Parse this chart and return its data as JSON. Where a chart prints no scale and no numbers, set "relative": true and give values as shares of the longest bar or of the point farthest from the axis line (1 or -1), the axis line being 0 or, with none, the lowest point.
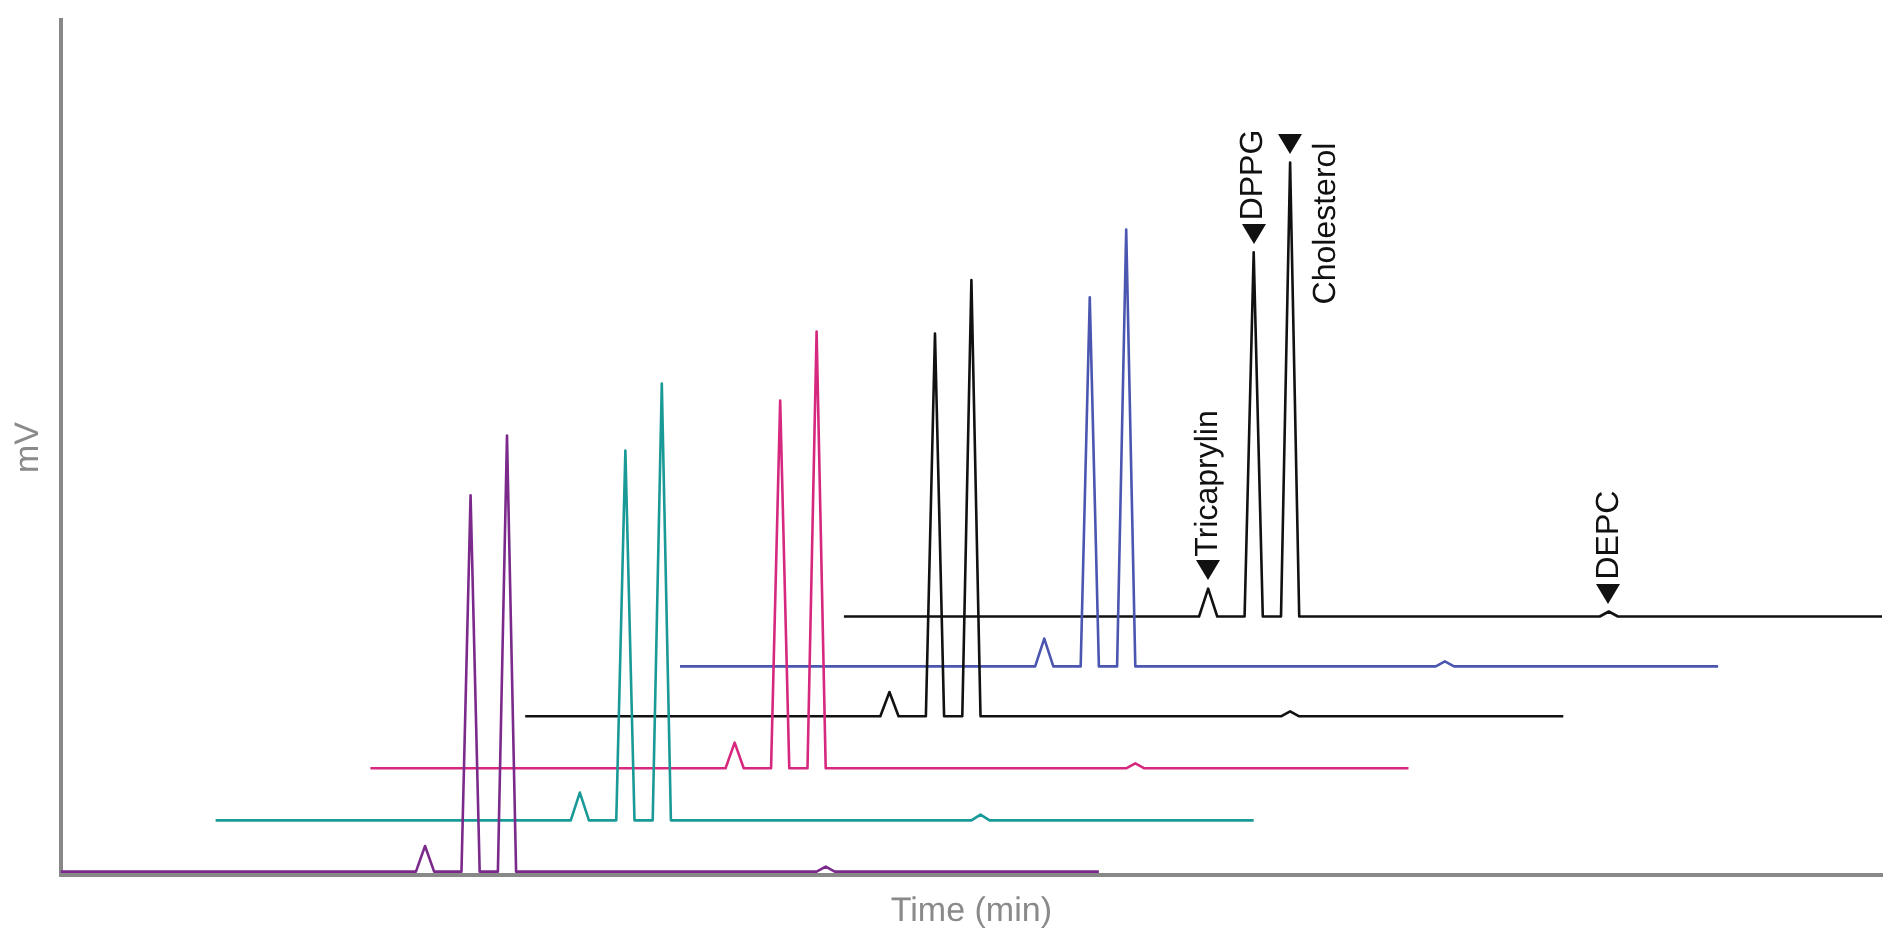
{
  "chart_data": {
    "type": "line",
    "relative": true,
    "xlabel": "Time (min)",
    "ylabel": "mV",
    "legend": false,
    "grid": false,
    "marker": "none",
    "line_style": "solid",
    "tick_labels": false,
    "categories": [
      null,
      null,
      null,
      null,
      null,
      null,
      null,
      null,
      null,
      null,
      null,
      null,
      null,
      null,
      null,
      null,
      null,
      null,
      null,
      null,
      null,
      null,
      null,
      null,
      null,
      null,
      null,
      null,
      null,
      null,
      null,
      null,
      null,
      null,
      null,
      null,
      null,
      null,
      null,
      null,
      null,
      null,
      null,
      null,
      null,
      null,
      null,
      null,
      null,
      null,
      null,
      null,
      null,
      null,
      null,
      null,
      null,
      null,
      null,
      null,
      null,
      null,
      null,
      null,
      null,
      null,
      null,
      null,
      null,
      null,
      null,
      null,
      null,
      null,
      null,
      null,
      null,
      null,
      null,
      null,
      null,
      null,
      null,
      null,
      null,
      null,
      null,
      null,
      null,
      null,
      null,
      null,
      null,
      null,
      null,
      null,
      null,
      null,
      null,
      null,
      null,
      null,
      null,
      null,
      null,
      null,
      null,
      null,
      null,
      null,
      null,
      null,
      null,
      null,
      null,
      null,
      null,
      null,
      null,
      null,
      null,
      null,
      null,
      null,
      null,
      null,
      null,
      null,
      null,
      null,
      null,
      null,
      null,
      null,
      null,
      null,
      null,
      null,
      null,
      null,
      null,
      null,
      null,
      null,
      null,
      null,
      null,
      null,
      null,
      null,
      null,
      null,
      null,
      null,
      null,
      null,
      null,
      null,
      null,
      null,
      null,
      null,
      null,
      null,
      null,
      null,
      null,
      null,
      null,
      null,
      null,
      null,
      null,
      null,
      null,
      null,
      null,
      null,
      null,
      null,
      null,
      null,
      null,
      null,
      null,
      null,
      null,
      null,
      null,
      null,
      null,
      null,
      null,
      null,
      null,
      null,
      null,
      null,
      null,
      null,
      null
    ],
    "series": [
      {
        "color": "#7b2a8c",
        "values": [
          0.005,
          0.005,
          0.005,
          0.005,
          0.005,
          0.005,
          0.005,
          0.005,
          0.005,
          0.005,
          0.005,
          0.005,
          0.005,
          0.005,
          0.005,
          0.005,
          0.005,
          0.005,
          0.005,
          0.005,
          0.005,
          0.005,
          0.005,
          0.005,
          0.005,
          0.005,
          0.005,
          0.005,
          0.005,
          0.005,
          0.005,
          0.005,
          0.005,
          0.005,
          0.005,
          0.005,
          0.005,
          0.005,
          0.005,
          0.005,
          0.041,
          0.005,
          0.005,
          0.005,
          0.005,
          0.533,
          0.005,
          0.005,
          0.005,
          0.617,
          0.005,
          0.005,
          0.005,
          0.005,
          0.005,
          0.005,
          0.005,
          0.005,
          0.005,
          0.005,
          0.005,
          0.005,
          0.005,
          0.005,
          0.005,
          0.005,
          0.005,
          0.005,
          0.005,
          0.005,
          0.005,
          0.005,
          0.005,
          0.005,
          0.005,
          0.005,
          0.005,
          0.005,
          0.005,
          0.005,
          0.005,
          0.005,
          0.005,
          0.005,
          0.012,
          0.005,
          0.005,
          0.005,
          0.005,
          0.005,
          0.005,
          0.005,
          0.005,
          0.005,
          0.005,
          0.005,
          0.005,
          0.005,
          0.005,
          0.005,
          0.005,
          0.005,
          0.005,
          0.005,
          0.005,
          0.005,
          0.005,
          0.005,
          0.005,
          0.005,
          0.005,
          0.005,
          0.005,
          0.005,
          0.005,
          null,
          null,
          null,
          null,
          null,
          null,
          null,
          null,
          null,
          null,
          null,
          null,
          null,
          null,
          null,
          null,
          null,
          null,
          null,
          null,
          null,
          null,
          null,
          null,
          null,
          null,
          null,
          null,
          null,
          null,
          null,
          null,
          null,
          null,
          null,
          null,
          null,
          null,
          null,
          null,
          null,
          null,
          null,
          null,
          null,
          null,
          null,
          null,
          null,
          null,
          null,
          null,
          null,
          null,
          null,
          null,
          null,
          null,
          null,
          null,
          null,
          null,
          null,
          null,
          null,
          null,
          null,
          null,
          null,
          null,
          null,
          null,
          null,
          null,
          null,
          null,
          null,
          null,
          null,
          null,
          null,
          null,
          null,
          null,
          null,
          null
        ]
      },
      {
        "color": "#1a9a96",
        "values": [
          null,
          null,
          null,
          null,
          null,
          null,
          null,
          null,
          null,
          null,
          null,
          null,
          null,
          null,
          null,
          null,
          null,
          0.077,
          0.077,
          0.077,
          0.077,
          0.077,
          0.077,
          0.077,
          0.077,
          0.077,
          0.077,
          0.077,
          0.077,
          0.077,
          0.077,
          0.077,
          0.077,
          0.077,
          0.077,
          0.077,
          0.077,
          0.077,
          0.077,
          0.077,
          0.077,
          0.077,
          0.077,
          0.077,
          0.077,
          0.077,
          0.077,
          0.077,
          0.077,
          0.077,
          0.077,
          0.077,
          0.077,
          0.077,
          0.077,
          0.077,
          0.077,
          0.116,
          0.077,
          0.077,
          0.077,
          0.077,
          0.596,
          0.077,
          0.077,
          0.077,
          0.69,
          0.077,
          0.077,
          0.077,
          0.077,
          0.077,
          0.077,
          0.077,
          0.077,
          0.077,
          0.077,
          0.077,
          0.077,
          0.077,
          0.077,
          0.077,
          0.077,
          0.077,
          0.077,
          0.077,
          0.077,
          0.077,
          0.077,
          0.077,
          0.077,
          0.077,
          0.077,
          0.077,
          0.077,
          0.077,
          0.077,
          0.077,
          0.077,
          0.077,
          0.077,
          0.085,
          0.077,
          0.077,
          0.077,
          0.077,
          0.077,
          0.077,
          0.077,
          0.077,
          0.077,
          0.077,
          0.077,
          0.077,
          0.077,
          0.077,
          0.077,
          0.077,
          0.077,
          0.077,
          0.077,
          0.077,
          0.077,
          0.077,
          0.077,
          0.077,
          0.077,
          0.077,
          0.077,
          0.077,
          0.077,
          0.077,
          null,
          null,
          null,
          null,
          null,
          null,
          null,
          null,
          null,
          null,
          null,
          null,
          null,
          null,
          null,
          null,
          null,
          null,
          null,
          null,
          null,
          null,
          null,
          null,
          null,
          null,
          null,
          null,
          null,
          null,
          null,
          null,
          null,
          null,
          null,
          null,
          null,
          null,
          null,
          null,
          null,
          null,
          null,
          null,
          null,
          null,
          null,
          null,
          null,
          null,
          null,
          null,
          null,
          null,
          null,
          null,
          null,
          null,
          null,
          null,
          null,
          null,
          null,
          null,
          null,
          null,
          null,
          null,
          null
        ]
      },
      {
        "color": "#d6287f",
        "values": [
          null,
          null,
          null,
          null,
          null,
          null,
          null,
          null,
          null,
          null,
          null,
          null,
          null,
          null,
          null,
          null,
          null,
          null,
          null,
          null,
          null,
          null,
          null,
          null,
          null,
          null,
          null,
          null,
          null,
          null,
          null,
          null,
          null,
          null,
          0.15,
          0.15,
          0.15,
          0.15,
          0.15,
          0.15,
          0.15,
          0.15,
          0.15,
          0.15,
          0.15,
          0.15,
          0.15,
          0.15,
          0.15,
          0.15,
          0.15,
          0.15,
          0.15,
          0.15,
          0.15,
          0.15,
          0.15,
          0.15,
          0.15,
          0.15,
          0.15,
          0.15,
          0.15,
          0.15,
          0.15,
          0.15,
          0.15,
          0.15,
          0.15,
          0.15,
          0.15,
          0.15,
          0.15,
          0.15,
          0.186,
          0.15,
          0.15,
          0.15,
          0.15,
          0.666,
          0.15,
          0.15,
          0.15,
          0.763,
          0.15,
          0.15,
          0.15,
          0.15,
          0.15,
          0.15,
          0.15,
          0.15,
          0.15,
          0.15,
          0.15,
          0.15,
          0.15,
          0.15,
          0.15,
          0.15,
          0.15,
          0.15,
          0.15,
          0.15,
          0.15,
          0.15,
          0.15,
          0.15,
          0.15,
          0.15,
          0.15,
          0.15,
          0.15,
          0.15,
          0.15,
          0.15,
          0.15,
          0.15,
          0.157,
          0.15,
          0.15,
          0.15,
          0.15,
          0.15,
          0.15,
          0.15,
          0.15,
          0.15,
          0.15,
          0.15,
          0.15,
          0.15,
          0.15,
          0.15,
          0.15,
          0.15,
          0.15,
          0.15,
          0.15,
          0.15,
          0.15,
          0.15,
          0.15,
          0.15,
          0.15,
          0.15,
          0.15,
          0.15,
          0.15,
          null,
          null,
          null,
          null,
          null,
          null,
          null,
          null,
          null,
          null,
          null,
          null,
          null,
          null,
          null,
          null,
          null,
          null,
          null,
          null,
          null,
          null,
          null,
          null,
          null,
          null,
          null,
          null,
          null,
          null,
          null,
          null,
          null,
          null,
          null,
          null,
          null,
          null,
          null,
          null,
          null,
          null,
          null,
          null,
          null,
          null,
          null,
          null,
          null,
          null,
          null,
          null
        ]
      },
      {
        "color": "#111111",
        "values": [
          null,
          null,
          null,
          null,
          null,
          null,
          null,
          null,
          null,
          null,
          null,
          null,
          null,
          null,
          null,
          null,
          null,
          null,
          null,
          null,
          null,
          null,
          null,
          null,
          null,
          null,
          null,
          null,
          null,
          null,
          null,
          null,
          null,
          null,
          null,
          null,
          null,
          null,
          null,
          null,
          null,
          null,
          null,
          null,
          null,
          null,
          null,
          null,
          null,
          null,
          null,
          0.223,
          0.223,
          0.223,
          0.223,
          0.223,
          0.223,
          0.223,
          0.223,
          0.223,
          0.223,
          0.223,
          0.223,
          0.223,
          0.223,
          0.223,
          0.223,
          0.223,
          0.223,
          0.223,
          0.223,
          0.223,
          0.223,
          0.223,
          0.223,
          0.223,
          0.223,
          0.223,
          0.223,
          0.223,
          0.223,
          0.223,
          0.223,
          0.223,
          0.223,
          0.223,
          0.223,
          0.223,
          0.223,
          0.223,
          0.223,
          0.257,
          0.223,
          0.223,
          0.223,
          0.223,
          0.76,
          0.223,
          0.223,
          0.223,
          0.835,
          0.223,
          0.223,
          0.223,
          0.223,
          0.223,
          0.223,
          0.223,
          0.223,
          0.223,
          0.223,
          0.223,
          0.223,
          0.223,
          0.223,
          0.223,
          0.223,
          0.223,
          0.223,
          0.223,
          0.223,
          0.223,
          0.223,
          0.223,
          0.223,
          0.223,
          0.223,
          0.223,
          0.223,
          0.223,
          0.223,
          0.223,
          0.223,
          0.223,
          0.223,
          0.23,
          0.223,
          0.223,
          0.223,
          0.223,
          0.223,
          0.223,
          0.223,
          0.223,
          0.223,
          0.223,
          0.223,
          0.223,
          0.223,
          0.223,
          0.223,
          0.223,
          0.223,
          0.223,
          0.223,
          0.223,
          0.223,
          0.223,
          0.223,
          0.223,
          0.223,
          0.223,
          0.223,
          0.223,
          0.223,
          0.223,
          null,
          null,
          null,
          null,
          null,
          null,
          null,
          null,
          null,
          null,
          null,
          null,
          null,
          null,
          null,
          null,
          null,
          null,
          null,
          null,
          null,
          null,
          null,
          null,
          null,
          null,
          null,
          null,
          null,
          null,
          null,
          null,
          null,
          null,
          null
        ]
      },
      {
        "color": "#4a56b0",
        "values": [
          null,
          null,
          null,
          null,
          null,
          null,
          null,
          null,
          null,
          null,
          null,
          null,
          null,
          null,
          null,
          null,
          null,
          null,
          null,
          null,
          null,
          null,
          null,
          null,
          null,
          null,
          null,
          null,
          null,
          null,
          null,
          null,
          null,
          null,
          null,
          null,
          null,
          null,
          null,
          null,
          null,
          null,
          null,
          null,
          null,
          null,
          null,
          null,
          null,
          null,
          null,
          null,
          null,
          null,
          null,
          null,
          null,
          null,
          null,
          null,
          null,
          null,
          null,
          null,
          null,
          null,
          null,
          null,
          0.293,
          0.293,
          0.293,
          0.293,
          0.293,
          0.293,
          0.293,
          0.293,
          0.293,
          0.293,
          0.293,
          0.293,
          0.293,
          0.293,
          0.293,
          0.293,
          0.293,
          0.293,
          0.293,
          0.293,
          0.293,
          0.293,
          0.293,
          0.293,
          0.293,
          0.293,
          0.293,
          0.293,
          0.293,
          0.293,
          0.293,
          0.293,
          0.293,
          0.293,
          0.293,
          0.293,
          0.293,
          0.293,
          0.293,
          0.293,
          0.332,
          0.293,
          0.293,
          0.293,
          0.293,
          0.811,
          0.293,
          0.293,
          0.293,
          0.906,
          0.293,
          0.293,
          0.293,
          0.293,
          0.293,
          0.293,
          0.293,
          0.293,
          0.293,
          0.293,
          0.293,
          0.293,
          0.293,
          0.293,
          0.293,
          0.293,
          0.293,
          0.293,
          0.293,
          0.293,
          0.293,
          0.293,
          0.293,
          0.293,
          0.293,
          0.293,
          0.293,
          0.293,
          0.293,
          0.293,
          0.293,
          0.293,
          0.293,
          0.293,
          0.3,
          0.293,
          0.293,
          0.293,
          0.293,
          0.293,
          0.293,
          0.293,
          0.293,
          0.293,
          0.293,
          0.293,
          0.293,
          0.293,
          0.293,
          0.293,
          0.293,
          0.293,
          0.293,
          0.293,
          0.293,
          0.293,
          0.293,
          0.293,
          0.293,
          0.293,
          0.293,
          0.293,
          0.293,
          0.293,
          0.293,
          null,
          null,
          null,
          null,
          null,
          null,
          null,
          null,
          null,
          null,
          null,
          null,
          null,
          null,
          null,
          null,
          null,
          null
        ]
      },
      {
        "color": "#111111",
        "values": [
          null,
          null,
          null,
          null,
          null,
          null,
          null,
          null,
          null,
          null,
          null,
          null,
          null,
          null,
          null,
          null,
          null,
          null,
          null,
          null,
          null,
          null,
          null,
          null,
          null,
          null,
          null,
          null,
          null,
          null,
          null,
          null,
          null,
          null,
          null,
          null,
          null,
          null,
          null,
          null,
          null,
          null,
          null,
          null,
          null,
          null,
          null,
          null,
          null,
          null,
          null,
          null,
          null,
          null,
          null,
          null,
          null,
          null,
          null,
          null,
          null,
          null,
          null,
          null,
          null,
          null,
          null,
          null,
          null,
          null,
          null,
          null,
          null,
          null,
          null,
          null,
          null,
          null,
          null,
          null,
          null,
          null,
          null,
          null,
          null,
          null,
          0.363,
          0.363,
          0.363,
          0.363,
          0.363,
          0.363,
          0.363,
          0.363,
          0.363,
          0.363,
          0.363,
          0.363,
          0.363,
          0.363,
          0.363,
          0.363,
          0.363,
          0.363,
          0.363,
          0.363,
          0.363,
          0.363,
          0.363,
          0.363,
          0.363,
          0.363,
          0.363,
          0.363,
          0.363,
          0.363,
          0.363,
          0.363,
          0.363,
          0.363,
          0.363,
          0.363,
          0.363,
          0.363,
          0.363,
          0.363,
          0.402,
          0.363,
          0.363,
          0.363,
          0.363,
          0.874,
          0.363,
          0.363,
          0.363,
          1,
          0.363,
          0.363,
          0.363,
          0.363,
          0.363,
          0.363,
          0.363,
          0.363,
          0.363,
          0.363,
          0.363,
          0.363,
          0.363,
          0.363,
          0.363,
          0.363,
          0.363,
          0.363,
          0.363,
          0.363,
          0.363,
          0.363,
          0.363,
          0.363,
          0.363,
          0.363,
          0.363,
          0.363,
          0.363,
          0.363,
          0.363,
          0.363,
          0.363,
          0.363,
          0.37,
          0.363,
          0.363,
          0.363,
          0.363,
          0.363,
          0.363,
          0.363,
          0.363,
          0.363,
          0.363,
          0.363,
          0.363,
          0.363,
          0.363,
          0.363,
          0.363,
          0.363,
          0.363,
          0.363,
          0.363,
          0.363,
          0.363,
          0.363,
          0.363,
          0.363,
          0.363,
          0.363,
          0.363,
          0.363,
          0.363
        ]
      }
    ],
    "annotations": [
      {
        "text": "Tricaprylin",
        "y": 0.402
      },
      {
        "text": "DPPG",
        "y": 0.874
      },
      "Cholesterol",
      {
        "text": "DEPC",
        "y": 0.37
      }
    ]
  }
}
